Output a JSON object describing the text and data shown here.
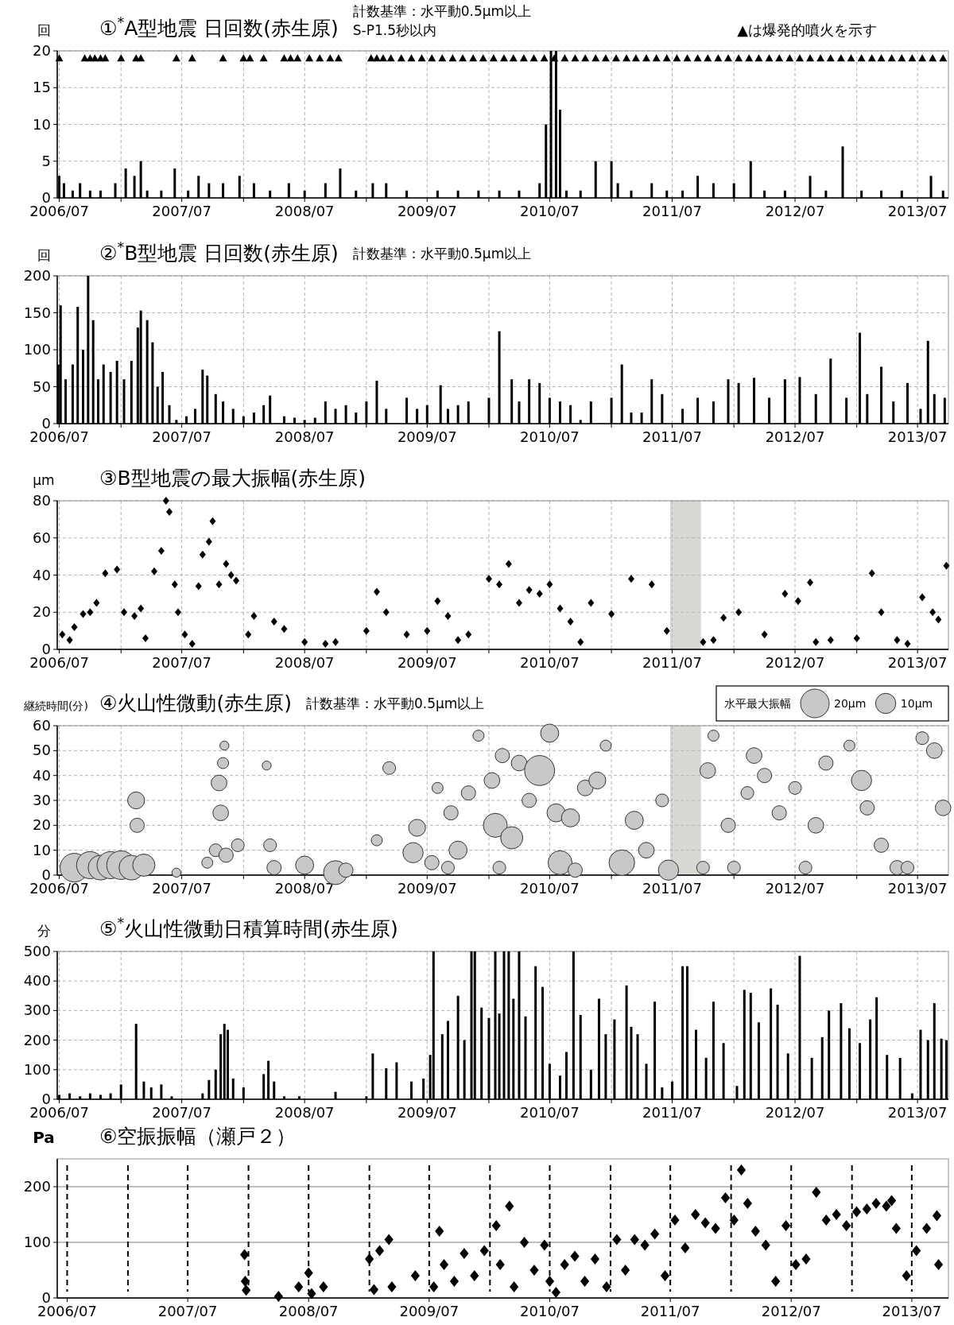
{
  "chart_data": [
    {
      "type": "bar",
      "title": "①$^{*}$A型地震 日回数(赤生原)",
      "subtitle": "計数基準：水平動0.5μm以上",
      "ylabel": "回",
      "annotations": [
        "S-P1.5秒以内",
        "▲は爆発的噴火を示す"
      ],
      "xlim": [
        "2006-06-25",
        "2013-10-01"
      ],
      "xticks": [
        {
          "value": "2006-07",
          "label": "2006/07"
        },
        {
          "value": "2007-01",
          "label": null
        },
        {
          "value": "2007-07",
          "label": "2007/07"
        },
        {
          "value": "2008-01",
          "label": null
        },
        {
          "value": "2008-07",
          "label": "2008/07"
        },
        {
          "value": "2009-01",
          "label": null
        },
        {
          "value": "2009-07",
          "label": "2009/07"
        },
        {
          "value": "2010-01",
          "label": null
        },
        {
          "value": "2010-07",
          "label": "2010/07"
        },
        {
          "value": "2011-01",
          "label": null
        },
        {
          "value": "2011-07",
          "label": "2011/07"
        },
        {
          "value": "2012-01",
          "label": null
        },
        {
          "value": "2012-07",
          "label": "2012/07"
        },
        {
          "value": "2013-01",
          "label": null
        },
        {
          "value": "2013-07",
          "label": "2013/07"
        }
      ],
      "ylim": [
        0,
        20
      ],
      "yticks": [
        0,
        5,
        10,
        15,
        20
      ],
      "grid": true,
      "series": [
        {
          "color": "#000000",
          "x": [
            "2006-07-01",
            "2006-07-15",
            "2006-08-10",
            "2006-09-01",
            "2006-10-01",
            "2006-11-01",
            "2006-12-15",
            "2007-01-15",
            "2007-02-10",
            "2007-03-01",
            "2007-03-20",
            "2007-05-01",
            "2007-06-10",
            "2007-07-20",
            "2007-08-20",
            "2007-09-20",
            "2007-11-01",
            "2007-12-20",
            "2008-02-01",
            "2008-03-20",
            "2008-05-15",
            "2008-07-01",
            "2008-09-01",
            "2008-10-15",
            "2008-12-01",
            "2009-01-20",
            "2009-03-01",
            "2009-05-01",
            "2009-08-01",
            "2009-10-01",
            "2009-12-01",
            "2010-02-01",
            "2010-04-01",
            "2010-06-01",
            "2010-06-20",
            "2010-07-05",
            "2010-07-20",
            "2010-08-01",
            "2010-08-20",
            "2010-10-01",
            "2010-11-15",
            "2011-01-01",
            "2011-01-20",
            "2011-03-01",
            "2011-05-01",
            "2011-06-15",
            "2011-08-01",
            "2011-09-15",
            "2011-11-01",
            "2012-01-01",
            "2012-02-20",
            "2012-04-01",
            "2012-06-01",
            "2012-08-15",
            "2012-10-01",
            "2012-11-20",
            "2013-01-15",
            "2013-03-15",
            "2013-05-15",
            "2013-08-10",
            "2013-09-15"
          ],
          "values": [
            3,
            2,
            1,
            2,
            1,
            1,
            2,
            4,
            3,
            5,
            1,
            1,
            4,
            1,
            3,
            2,
            2,
            3,
            2,
            1,
            2,
            1,
            2,
            4,
            1,
            2,
            2,
            1,
            1,
            1,
            1,
            1,
            1,
            2,
            10,
            20,
            20,
            12,
            1,
            1,
            5,
            5,
            2,
            1,
            2,
            1,
            1,
            3,
            2,
            2,
            5,
            1,
            1,
            3,
            1,
            7,
            1,
            1,
            1,
            3,
            1
          ]
        },
        {
          "type": "scatter",
          "marker": "triangle",
          "color": "#000000",
          "x": [
            "2006-07-01",
            "2006-09-15",
            "2006-10-01",
            "2006-10-15",
            "2006-11-01",
            "2006-11-15",
            "2007-01-01",
            "2007-02-15",
            "2007-03-01",
            "2007-06-15",
            "2007-08-01",
            "2007-11-01",
            "2008-01-01",
            "2008-01-20",
            "2008-03-01",
            "2008-05-01",
            "2008-05-20",
            "2008-06-10",
            "2008-07-15",
            "2008-08-15",
            "2008-09-15",
            "2008-10-10",
            "2009-01-15",
            "2009-02-01",
            "2009-02-20",
            "2009-03-15",
            "2009-04-15",
            "2009-05-15",
            "2009-06-15",
            "2009-07-15",
            "2009-08-15",
            "2009-09-15",
            "2009-10-15",
            "2009-11-15",
            "2009-12-15",
            "2010-01-15",
            "2010-02-15",
            "2010-03-15",
            "2010-04-15",
            "2010-05-15",
            "2010-06-15",
            "2010-07-15",
            "2010-08-15",
            "2010-09-15",
            "2010-10-15",
            "2010-11-15",
            "2010-12-15",
            "2011-01-15",
            "2011-02-15",
            "2011-03-15",
            "2011-04-15",
            "2011-05-15",
            "2011-06-15",
            "2011-07-15",
            "2011-08-15",
            "2011-09-15",
            "2011-10-15",
            "2011-11-15",
            "2011-12-15",
            "2012-01-15",
            "2012-02-15",
            "2012-03-15",
            "2012-04-15",
            "2012-05-15",
            "2012-06-15",
            "2012-07-15",
            "2012-08-15",
            "2012-09-15",
            "2012-10-15",
            "2012-11-15",
            "2012-12-15",
            "2013-01-15",
            "2013-02-15",
            "2013-03-15",
            "2013-04-15",
            "2013-05-15",
            "2013-06-15",
            "2013-07-15",
            "2013-08-15",
            "2013-09-15"
          ],
          "values": [
            19,
            19,
            19,
            19,
            19,
            19,
            19,
            19,
            19,
            19,
            19,
            19,
            19,
            19,
            19,
            19,
            19,
            19,
            19,
            19,
            19,
            19,
            19,
            19,
            19,
            19,
            19,
            19,
            19,
            19,
            19,
            19,
            19,
            19,
            19,
            19,
            19,
            19,
            19,
            19,
            19,
            19,
            19,
            19,
            19,
            19,
            19,
            19,
            19,
            19,
            19,
            19,
            19,
            19,
            19,
            19,
            19,
            19,
            19,
            19,
            19,
            19,
            19,
            19,
            19,
            19,
            19,
            19,
            19,
            19,
            19,
            19,
            19,
            19,
            19,
            19,
            19,
            19,
            19,
            19
          ]
        }
      ]
    },
    {
      "type": "bar",
      "title": "②$^{*}$B型地震 日回数(赤生原)",
      "subtitle": "計数基準：水平動0.5μm以上",
      "ylabel": "回",
      "xlim": [
        "2006-06-25",
        "2013-10-01"
      ],
      "xticks": [
        {
          "value": "2006-07",
          "label": "2006/07"
        },
        {
          "value": "2007-01",
          "label": null
        },
        {
          "value": "2007-07",
          "label": "2007/07"
        },
        {
          "value": "2008-01",
          "label": null
        },
        {
          "value": "2008-07",
          "label": "2008/07"
        },
        {
          "value": "2009-01",
          "label": null
        },
        {
          "value": "2009-07",
          "label": "2009/07"
        },
        {
          "value": "2010-01",
          "label": null
        },
        {
          "value": "2010-07",
          "label": "2010/07"
        },
        {
          "value": "2011-01",
          "label": null
        },
        {
          "value": "2011-07",
          "label": "2011/07"
        },
        {
          "value": "2012-01",
          "label": null
        },
        {
          "value": "2012-07",
          "label": "2012/07"
        },
        {
          "value": "2013-01",
          "label": null
        },
        {
          "value": "2013-07",
          "label": "2013/07"
        }
      ],
      "ylim": [
        0,
        200
      ],
      "yticks": [
        0,
        50,
        100,
        150,
        200
      ],
      "grid": true,
      "series": [
        {
          "color": "#000000",
          "x": [
            "2006-06-28",
            "2006-07-05",
            "2006-07-20",
            "2006-08-10",
            "2006-08-25",
            "2006-09-10",
            "2006-09-25",
            "2006-10-10",
            "2006-10-25",
            "2006-11-10",
            "2006-12-01",
            "2006-12-20",
            "2007-01-10",
            "2007-02-01",
            "2007-02-20",
            "2007-03-01",
            "2007-03-20",
            "2007-04-05",
            "2007-04-20",
            "2007-05-05",
            "2007-05-25",
            "2007-06-15",
            "2007-07-15",
            "2007-08-10",
            "2007-09-01",
            "2007-09-15",
            "2007-10-10",
            "2007-11-01",
            "2007-12-01",
            "2008-01-01",
            "2008-02-01",
            "2008-03-01",
            "2008-03-20",
            "2008-05-01",
            "2008-06-01",
            "2008-07-01",
            "2008-08-01",
            "2008-09-01",
            "2008-10-01",
            "2008-11-01",
            "2008-12-01",
            "2009-01-01",
            "2009-02-01",
            "2009-03-01",
            "2009-05-01",
            "2009-06-01",
            "2009-07-01",
            "2009-08-10",
            "2009-09-01",
            "2009-10-01",
            "2009-11-01",
            "2010-01-01",
            "2010-02-01",
            "2010-03-10",
            "2010-04-01",
            "2010-05-01",
            "2010-06-01",
            "2010-07-01",
            "2010-08-01",
            "2010-09-01",
            "2010-10-01",
            "2010-11-01",
            "2011-01-01",
            "2011-02-01",
            "2011-03-01",
            "2011-04-01",
            "2011-05-01",
            "2011-06-01",
            "2011-08-01",
            "2011-09-15",
            "2011-11-01",
            "2011-12-15",
            "2012-01-15",
            "2012-03-01",
            "2012-04-15",
            "2012-06-01",
            "2012-07-15",
            "2012-09-01",
            "2012-10-15",
            "2012-12-01",
            "2013-01-10",
            "2013-02-01",
            "2013-03-15",
            "2013-04-20",
            "2013-06-01",
            "2013-07-10",
            "2013-08-01",
            "2013-08-20",
            "2013-09-20"
          ],
          "values": [
            80,
            160,
            60,
            80,
            158,
            100,
            200,
            140,
            60,
            80,
            70,
            85,
            60,
            85,
            130,
            153,
            140,
            110,
            50,
            70,
            25,
            5,
            10,
            20,
            73,
            65,
            40,
            30,
            20,
            10,
            15,
            25,
            38,
            10,
            8,
            5,
            8,
            30,
            20,
            25,
            15,
            30,
            58,
            20,
            35,
            20,
            25,
            52,
            20,
            25,
            30,
            35,
            125,
            60,
            30,
            60,
            55,
            35,
            30,
            25,
            5,
            30,
            35,
            80,
            15,
            15,
            60,
            40,
            20,
            35,
            30,
            60,
            55,
            62,
            35,
            60,
            63,
            40,
            88,
            35,
            123,
            40,
            77,
            30,
            55,
            20,
            112,
            40,
            35
          ]
        }
      ]
    },
    {
      "type": "scatter",
      "title": "③B型地震の最大振幅(赤生原)",
      "ylabel": "μm",
      "marker": "diamond",
      "xlim": [
        "2006-06-25",
        "2013-10-01"
      ],
      "xticks": [
        {
          "value": "2006-07",
          "label": "2006/07"
        },
        {
          "value": "2007-01",
          "label": null
        },
        {
          "value": "2007-07",
          "label": "2007/07"
        },
        {
          "value": "2008-01",
          "label": null
        },
        {
          "value": "2008-07",
          "label": "2008/07"
        },
        {
          "value": "2009-01",
          "label": null
        },
        {
          "value": "2009-07",
          "label": "2009/07"
        },
        {
          "value": "2010-01",
          "label": null
        },
        {
          "value": "2010-07",
          "label": "2010/07"
        },
        {
          "value": "2011-01",
          "label": null
        },
        {
          "value": "2011-07",
          "label": "2011/07"
        },
        {
          "value": "2012-01",
          "label": null
        },
        {
          "value": "2012-07",
          "label": "2012/07"
        },
        {
          "value": "2013-01",
          "label": null
        },
        {
          "value": "2013-07",
          "label": "2013/07"
        }
      ],
      "ylim": [
        0,
        80
      ],
      "yticks": [
        0,
        20,
        40,
        60,
        80
      ],
      "grid": true,
      "bands": [
        {
          "axis": "x",
          "from": "2011-06-25",
          "to": "2011-09-25",
          "color": "#d9d9d4"
        }
      ],
      "series": [
        {
          "color": "#000000",
          "x": [
            "2006-07-10",
            "2006-08-01",
            "2006-08-15",
            "2006-09-10",
            "2006-10-01",
            "2006-10-20",
            "2006-11-15",
            "2006-12-20",
            "2007-01-10",
            "2007-02-10",
            "2007-03-01",
            "2007-03-15",
            "2007-04-10",
            "2007-05-01",
            "2007-05-15",
            "2007-05-25",
            "2007-06-10",
            "2007-06-20",
            "2007-07-10",
            "2007-08-01",
            "2007-08-20",
            "2007-09-01",
            "2007-09-20",
            "2007-10-01",
            "2007-10-20",
            "2007-11-10",
            "2007-11-25",
            "2007-12-10",
            "2008-01-15",
            "2008-02-01",
            "2008-04-01",
            "2008-05-01",
            "2008-07-01",
            "2008-09-01",
            "2008-10-01",
            "2009-01-01",
            "2009-02-01",
            "2009-03-01",
            "2009-05-01",
            "2009-07-01",
            "2009-08-01",
            "2009-09-01",
            "2009-10-01",
            "2009-11-01",
            "2010-01-01",
            "2010-02-01",
            "2010-03-01",
            "2010-04-01",
            "2010-05-01",
            "2010-06-01",
            "2010-07-01",
            "2010-08-01",
            "2010-09-01",
            "2010-10-01",
            "2010-11-01",
            "2011-01-01",
            "2011-03-01",
            "2011-05-01",
            "2011-06-15",
            "2011-10-01",
            "2011-11-01",
            "2011-12-01",
            "2012-01-15",
            "2012-04-01",
            "2012-06-01",
            "2012-07-10",
            "2012-08-15",
            "2012-09-01",
            "2012-10-15",
            "2013-01-01",
            "2013-02-15",
            "2013-03-15",
            "2013-05-01",
            "2013-06-01",
            "2013-07-15",
            "2013-08-15",
            "2013-09-01",
            "2013-09-25"
          ],
          "values": [
            8,
            5,
            12,
            19,
            20,
            25,
            41,
            43,
            20,
            18,
            22,
            6,
            42,
            53,
            80,
            74,
            35,
            20,
            8,
            3,
            34,
            51,
            58,
            69,
            35,
            46,
            40,
            37,
            8,
            18,
            15,
            11,
            4,
            3,
            4,
            10,
            31,
            20,
            8,
            10,
            26,
            18,
            5,
            8,
            38,
            35,
            46,
            25,
            32,
            30,
            35,
            22,
            15,
            4,
            25,
            19,
            38,
            35,
            10,
            4,
            5,
            17,
            20,
            8,
            30,
            26,
            36,
            4,
            5,
            6,
            41,
            20,
            5,
            3,
            28,
            20,
            16,
            45
          ]
        }
      ]
    },
    {
      "type": "bubble",
      "title": "④火山性微動(赤生原)",
      "subtitle": "計数基準：水平動0.5μm以上",
      "ylabel": "継続時間(分)",
      "legend_title": "水平最大振幅",
      "size_legend": [
        {
          "value": 20,
          "label": "20μm"
        },
        {
          "value": 10,
          "label": "10μm"
        }
      ],
      "xlim": [
        "2006-06-25",
        "2013-10-01"
      ],
      "xticks": [
        {
          "value": "2006-07",
          "label": "2006/07"
        },
        {
          "value": "2007-01",
          "label": null
        },
        {
          "value": "2007-07",
          "label": "2007/07"
        },
        {
          "value": "2008-01",
          "label": null
        },
        {
          "value": "2008-07",
          "label": "2008/07"
        },
        {
          "value": "2009-01",
          "label": null
        },
        {
          "value": "2009-07",
          "label": "2009/07"
        },
        {
          "value": "2010-01",
          "label": null
        },
        {
          "value": "2010-07",
          "label": "2010/07"
        },
        {
          "value": "2011-01",
          "label": null
        },
        {
          "value": "2011-07",
          "label": "2011/07"
        },
        {
          "value": "2012-01",
          "label": null
        },
        {
          "value": "2012-07",
          "label": "2012/07"
        },
        {
          "value": "2013-01",
          "label": null
        },
        {
          "value": "2013-07",
          "label": "2013/07"
        }
      ],
      "ylim": [
        0,
        60
      ],
      "yticks": [
        0,
        10,
        20,
        30,
        40,
        50,
        60
      ],
      "grid": true,
      "bands": [
        {
          "axis": "x",
          "from": "2011-06-25",
          "to": "2011-09-25",
          "color": "#d9d9d4"
        }
      ],
      "series": [
        {
          "color": "#c8c8c8",
          "x": [
            "2006-08-15",
            "2006-10-01",
            "2006-11-01",
            "2006-12-01",
            "2007-01-01",
            "2007-02-01",
            "2007-02-15",
            "2007-02-18",
            "2007-03-10",
            "2007-06-15",
            "2007-09-15",
            "2007-10-10",
            "2007-10-20",
            "2007-10-25",
            "2007-11-01",
            "2007-11-05",
            "2007-11-10",
            "2007-12-15",
            "2008-03-10",
            "2008-03-20",
            "2008-04-01",
            "2008-07-01",
            "2008-10-01",
            "2008-11-01",
            "2009-02-01",
            "2009-03-10",
            "2009-05-20",
            "2009-06-01",
            "2009-07-15",
            "2009-08-01",
            "2009-09-01",
            "2009-09-10",
            "2009-10-01",
            "2009-11-01",
            "2009-12-01",
            "2010-01-10",
            "2010-01-20",
            "2010-02-01",
            "2010-02-10",
            "2010-03-10",
            "2010-04-01",
            "2010-05-01",
            "2010-06-01",
            "2010-07-01",
            "2010-07-20",
            "2010-08-01",
            "2010-09-01",
            "2010-09-15",
            "2010-10-15",
            "2010-11-20",
            "2010-12-15",
            "2011-02-01",
            "2011-03-10",
            "2011-04-15",
            "2011-06-01",
            "2011-06-20",
            "2011-10-01",
            "2011-10-15",
            "2011-11-01",
            "2011-12-15",
            "2012-01-01",
            "2012-02-10",
            "2012-03-01",
            "2012-04-01",
            "2012-05-15",
            "2012-07-01",
            "2012-08-01",
            "2012-09-01",
            "2012-10-01",
            "2012-12-10",
            "2013-01-15",
            "2013-02-01",
            "2013-03-15",
            "2013-05-01",
            "2013-06-01",
            "2013-07-15",
            "2013-08-20",
            "2013-09-15"
          ],
          "values": [
            3,
            4,
            3,
            4,
            4,
            3,
            30,
            20,
            4,
            1,
            5,
            10,
            37,
            25,
            45,
            52,
            8,
            12,
            44,
            12,
            3,
            4,
            1,
            2,
            14,
            43,
            9,
            19,
            5,
            35,
            3,
            25,
            10,
            33,
            56,
            38,
            20,
            3,
            48,
            15,
            45,
            30,
            42,
            57,
            25,
            5,
            23,
            2,
            35,
            38,
            52,
            5,
            22,
            10,
            30,
            2,
            3,
            42,
            56,
            20,
            3,
            33,
            48,
            40,
            25,
            35,
            3,
            20,
            45,
            52,
            38,
            27,
            12,
            3,
            3,
            55,
            50,
            27
          ],
          "sizes": [
            20,
            18,
            15,
            18,
            20,
            15,
            7,
            5,
            12,
            2,
            3,
            4,
            6,
            6,
            3,
            2,
            5,
            4,
            2,
            4,
            5,
            8,
            14,
            5,
            3,
            4,
            10,
            7,
            5,
            3,
            4,
            5,
            8,
            5,
            3,
            6,
            14,
            4,
            5,
            12,
            6,
            5,
            22,
            8,
            8,
            14,
            8,
            5,
            6,
            7,
            3,
            16,
            8,
            6,
            4,
            10,
            4,
            6,
            3,
            5,
            4,
            4,
            6,
            5,
            5,
            4,
            4,
            6,
            5,
            3,
            10,
            5,
            5,
            5,
            4,
            4,
            6,
            6
          ]
        }
      ]
    },
    {
      "type": "bar",
      "title": "⑤$^{*}$火山性微動日積算時間(赤生原)",
      "ylabel": "分",
      "xlim": [
        "2006-06-25",
        "2013-10-01"
      ],
      "xticks": [
        {
          "value": "2006-07",
          "label": "2006/07"
        },
        {
          "value": "2007-01",
          "label": null
        },
        {
          "value": "2007-07",
          "label": "2007/07"
        },
        {
          "value": "2008-01",
          "label": null
        },
        {
          "value": "2008-07",
          "label": "2008/07"
        },
        {
          "value": "2009-01",
          "label": null
        },
        {
          "value": "2009-07",
          "label": "2009/07"
        },
        {
          "value": "2010-01",
          "label": null
        },
        {
          "value": "2010-07",
          "label": "2010/07"
        },
        {
          "value": "2011-01",
          "label": null
        },
        {
          "value": "2011-07",
          "label": "2011/07"
        },
        {
          "value": "2012-01",
          "label": null
        },
        {
          "value": "2012-07",
          "label": "2012/07"
        },
        {
          "value": "2013-01",
          "label": null
        },
        {
          "value": "2013-07",
          "label": "2013/07"
        }
      ],
      "ylim": [
        0,
        500
      ],
      "yticks": [
        0,
        100,
        200,
        300,
        400,
        500
      ],
      "grid": true,
      "series": [
        {
          "color": "#000000",
          "x": [
            "2006-07-01",
            "2006-08-01",
            "2006-09-01",
            "2006-10-01",
            "2006-11-01",
            "2006-12-01",
            "2007-01-01",
            "2007-02-15",
            "2007-03-10",
            "2007-04-01",
            "2007-05-01",
            "2007-06-01",
            "2007-09-01",
            "2007-09-20",
            "2007-10-10",
            "2007-10-25",
            "2007-11-05",
            "2007-11-15",
            "2007-12-01",
            "2008-01-01",
            "2008-03-01",
            "2008-03-15",
            "2008-04-01",
            "2008-05-01",
            "2008-06-15",
            "2008-10-01",
            "2009-01-01",
            "2009-01-20",
            "2009-03-01",
            "2009-04-01",
            "2009-05-15",
            "2009-06-20",
            "2009-07-10",
            "2009-07-20",
            "2009-08-15",
            "2009-09-01",
            "2009-10-01",
            "2009-10-20",
            "2009-11-10",
            "2009-11-20",
            "2009-12-10",
            "2010-01-01",
            "2010-01-20",
            "2010-02-01",
            "2010-02-15",
            "2010-03-01",
            "2010-03-15",
            "2010-04-01",
            "2010-04-20",
            "2010-05-20",
            "2010-06-10",
            "2010-07-01",
            "2010-08-01",
            "2010-08-20",
            "2010-09-10",
            "2010-10-01",
            "2010-11-01",
            "2010-11-25",
            "2010-12-15",
            "2011-01-10",
            "2011-02-15",
            "2011-03-01",
            "2011-03-20",
            "2011-04-15",
            "2011-05-10",
            "2011-06-01",
            "2011-07-01",
            "2011-08-01",
            "2011-08-15",
            "2011-09-10",
            "2011-10-10",
            "2011-11-01",
            "2011-12-01",
            "2012-01-10",
            "2012-02-01",
            "2012-02-20",
            "2012-03-15",
            "2012-04-20",
            "2012-05-10",
            "2012-06-10",
            "2012-07-15",
            "2012-08-20",
            "2012-09-20",
            "2012-10-10",
            "2012-11-15",
            "2012-12-10",
            "2013-01-10",
            "2013-02-10",
            "2013-03-01",
            "2013-04-01",
            "2013-05-10",
            "2013-06-15",
            "2013-07-10",
            "2013-08-01",
            "2013-08-20",
            "2013-09-10",
            "2013-09-25"
          ],
          "values": [
            15,
            20,
            10,
            20,
            15,
            20,
            50,
            255,
            60,
            40,
            50,
            10,
            20,
            65,
            100,
            220,
            255,
            235,
            70,
            40,
            85,
            130,
            60,
            10,
            10,
            25,
            10,
            155,
            105,
            125,
            60,
            70,
            150,
            500,
            220,
            265,
            350,
            200,
            500,
            500,
            310,
            275,
            500,
            290,
            500,
            500,
            340,
            500,
            280,
            450,
            380,
            120,
            80,
            160,
            500,
            285,
            100,
            340,
            220,
            270,
            385,
            245,
            220,
            120,
            330,
            40,
            60,
            450,
            450,
            235,
            140,
            330,
            190,
            45,
            370,
            360,
            260,
            375,
            320,
            155,
            485,
            140,
            210,
            300,
            325,
            240,
            190,
            270,
            345,
            150,
            140,
            20,
            235,
            200,
            325,
            205,
            200
          ]
        }
      ]
    },
    {
      "type": "scatter",
      "title": "⑥空振振幅（瀬戸２）",
      "ylabel": "Pa",
      "marker": "diamond",
      "xlim": [
        "2006-06-01",
        "2013-10-20"
      ],
      "xticks": [
        {
          "value": "2006-07",
          "label": "2006/07"
        },
        {
          "value": "2007-07",
          "label": "2007/07"
        },
        {
          "value": "2008-07",
          "label": "2008/07"
        },
        {
          "value": "2009-07",
          "label": "2009/07"
        },
        {
          "value": "2010-07",
          "label": "2010/07"
        },
        {
          "value": "2011-07",
          "label": "2011/07"
        },
        {
          "value": "2012-07",
          "label": "2012/07"
        },
        {
          "value": "2013-07",
          "label": "2013/07"
        }
      ],
      "ylim": [
        0,
        250
      ],
      "yticks": [
        0,
        100,
        200
      ],
      "grid": "y",
      "ref_lines": [
        {
          "axis": "x",
          "value": "2006-07-01",
          "line_style": "dashed",
          "color": "#000000"
        },
        {
          "axis": "x",
          "value": "2007-01-01",
          "line_style": "dashed",
          "color": "#000000"
        },
        {
          "axis": "x",
          "value": "2007-07-01",
          "line_style": "dashed",
          "color": "#000000"
        },
        {
          "axis": "x",
          "value": "2008-01-01",
          "line_style": "dashed",
          "color": "#000000"
        },
        {
          "axis": "x",
          "value": "2008-07-01",
          "line_style": "dashed",
          "color": "#000000"
        },
        {
          "axis": "x",
          "value": "2009-01-01",
          "line_style": "dashed",
          "color": "#000000"
        },
        {
          "axis": "x",
          "value": "2009-07-01",
          "line_style": "dashed",
          "color": "#000000"
        },
        {
          "axis": "x",
          "value": "2010-01-01",
          "line_style": "dashed",
          "color": "#000000"
        },
        {
          "axis": "x",
          "value": "2010-07-01",
          "line_style": "dashed",
          "color": "#000000"
        },
        {
          "axis": "x",
          "value": "2011-01-01",
          "line_style": "dashed",
          "color": "#000000"
        },
        {
          "axis": "x",
          "value": "2011-07-01",
          "line_style": "dashed",
          "color": "#000000"
        },
        {
          "axis": "x",
          "value": "2012-01-01",
          "line_style": "dashed",
          "color": "#000000"
        },
        {
          "axis": "x",
          "value": "2012-07-01",
          "line_style": "dashed",
          "color": "#000000"
        },
        {
          "axis": "x",
          "value": "2013-01-01",
          "line_style": "dashed",
          "color": "#000000"
        },
        {
          "axis": "x",
          "value": "2013-07-01",
          "line_style": "dashed",
          "color": "#000000"
        }
      ],
      "series": [
        {
          "color": "#000000",
          "x": [
            "2007-12-20",
            "2007-12-22",
            "2007-12-25",
            "2008-04-01",
            "2008-06-01",
            "2008-07-01",
            "2008-07-10",
            "2008-08-15",
            "2009-01-01",
            "2009-01-15",
            "2009-02-01",
            "2009-03-01",
            "2009-03-10",
            "2009-05-20",
            "2009-07-15",
            "2009-08-01",
            "2009-08-15",
            "2009-09-15",
            "2009-10-15",
            "2009-11-15",
            "2009-12-15",
            "2010-01-20",
            "2010-02-01",
            "2010-03-01",
            "2010-03-15",
            "2010-04-15",
            "2010-05-15",
            "2010-06-15",
            "2010-07-01",
            "2010-07-20",
            "2010-08-15",
            "2010-09-15",
            "2010-10-15",
            "2010-11-15",
            "2010-12-20",
            "2011-01-20",
            "2011-02-15",
            "2011-03-15",
            "2011-04-15",
            "2011-05-15",
            "2011-06-15",
            "2011-07-15",
            "2011-08-15",
            "2011-09-15",
            "2011-10-15",
            "2011-11-15",
            "2011-12-15",
            "2012-01-10",
            "2012-02-01",
            "2012-02-20",
            "2012-03-15",
            "2012-04-15",
            "2012-05-15",
            "2012-06-15",
            "2012-07-15",
            "2012-08-15",
            "2012-09-15",
            "2012-10-15",
            "2012-11-15",
            "2012-12-15",
            "2013-01-15",
            "2013-02-15",
            "2013-03-15",
            "2013-04-15",
            "2013-05-01",
            "2013-05-15",
            "2013-06-15",
            "2013-07-15",
            "2013-08-15",
            "2013-09-15",
            "2013-09-20"
          ],
          "values": [
            78,
            30,
            14,
            3,
            20,
            45,
            8,
            20,
            70,
            15,
            85,
            105,
            20,
            40,
            20,
            120,
            60,
            30,
            80,
            40,
            85,
            130,
            60,
            165,
            20,
            100,
            50,
            95,
            30,
            10,
            60,
            75,
            30,
            70,
            20,
            105,
            50,
            105,
            95,
            115,
            40,
            140,
            90,
            150,
            135,
            125,
            180,
            140,
            230,
            170,
            120,
            95,
            30,
            130,
            60,
            70,
            190,
            140,
            150,
            130,
            155,
            160,
            170,
            165,
            175,
            125,
            40,
            85,
            125,
            148,
            60
          ]
        }
      ]
    }
  ]
}
